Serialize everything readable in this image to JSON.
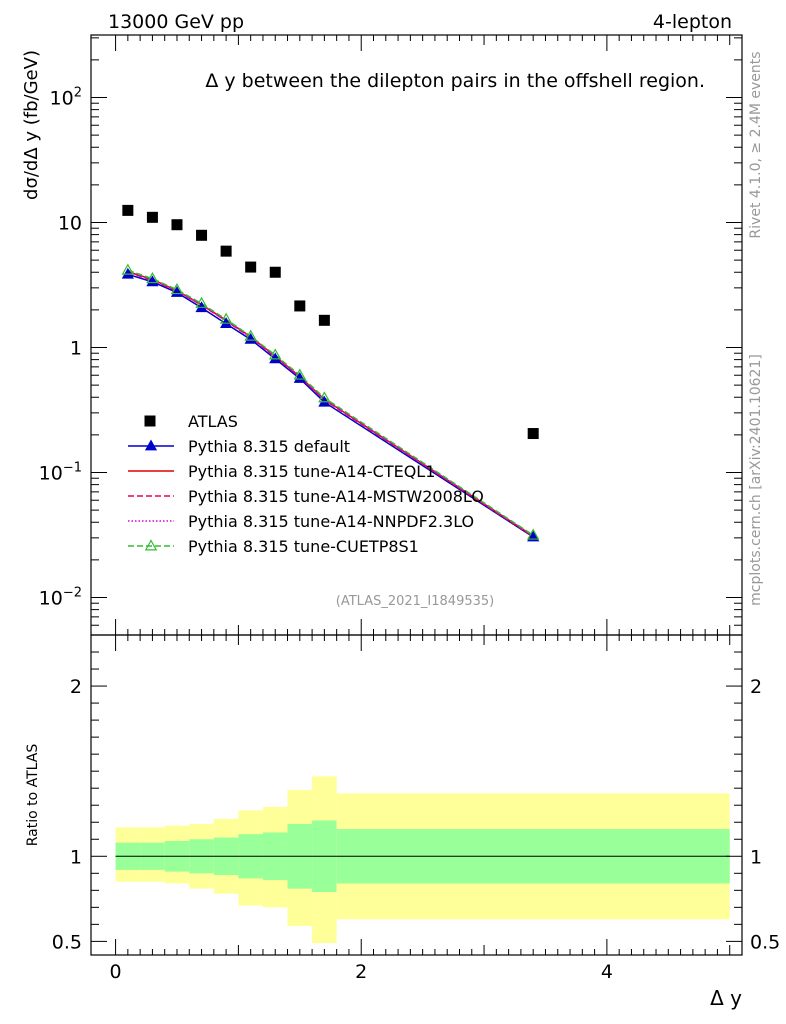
{
  "header": {
    "left_label": "13000 GeV pp",
    "right_label": "4-lepton"
  },
  "side_labels": {
    "rivet": "Rivet 4.1.0, ≥ 2.4M events",
    "mcplots": "mcplots.cern.ch [arXiv:2401.10621]"
  },
  "chart_data": [
    {
      "type": "scatter",
      "panel": "main",
      "title": "Δ y between the dilepton pairs in the offshell region.",
      "watermark": "(ATLAS_2021_I1849535)",
      "xlabel": "Δ y",
      "ylabel": "dσ/dΔ y (fb/GeV)",
      "xlim": [
        -0.2,
        5.1
      ],
      "ylim_log10": [
        -2.3,
        2.5
      ],
      "yscale": "log",
      "y_ticks": [
        {
          "value": 0.01,
          "base": "10",
          "exp": "−2"
        },
        {
          "value": 0.1,
          "base": "10",
          "exp": "−1"
        },
        {
          "value": 1,
          "label": "1"
        },
        {
          "value": 10,
          "label": "10"
        },
        {
          "value": 100,
          "base": "10",
          "exp": "2"
        }
      ],
      "legend_position": "center-left",
      "atlas": {
        "name": "ATLAS",
        "color": "#000000",
        "x": [
          0.1,
          0.3,
          0.5,
          0.7,
          0.9,
          1.1,
          1.3,
          1.5,
          1.7,
          3.4
        ],
        "y": [
          12.5,
          11.0,
          9.6,
          7.9,
          5.9,
          4.4,
          4.0,
          2.15,
          1.65,
          0.205
        ]
      },
      "series": [
        {
          "name": "Pythia 8.315 default",
          "color": "#0000cc",
          "style": "solid",
          "marker": "triangle-filled",
          "x": [
            0.1,
            0.3,
            0.5,
            0.7,
            0.9,
            1.1,
            1.3,
            1.5,
            1.7,
            3.4
          ],
          "y": [
            3.85,
            3.35,
            2.75,
            2.08,
            1.55,
            1.16,
            0.81,
            0.565,
            0.365,
            0.0305
          ]
        },
        {
          "name": "Pythia 8.315 tune-A14-CTEQL1",
          "color": "#dd0000",
          "style": "solid",
          "marker": "none",
          "x": [
            0.1,
            0.3,
            0.5,
            0.7,
            0.9,
            1.1,
            1.3,
            1.5,
            1.7,
            3.4
          ],
          "y": [
            4.05,
            3.5,
            2.85,
            2.2,
            1.65,
            1.22,
            0.85,
            0.585,
            0.385,
            0.031
          ]
        },
        {
          "name": "Pythia 8.315 tune-A14-MSTW2008LO",
          "color": "#ee0055",
          "style": "dashed",
          "marker": "none",
          "x": [
            0.1,
            0.3,
            0.5,
            0.7,
            0.9,
            1.1,
            1.3,
            1.5,
            1.7,
            3.4
          ],
          "y": [
            4.0,
            3.45,
            2.83,
            2.18,
            1.63,
            1.2,
            0.84,
            0.58,
            0.38,
            0.0308
          ]
        },
        {
          "name": "Pythia 8.315 tune-A14-NNPDF2.3LO",
          "color": "#dd00dd",
          "style": "dotted",
          "marker": "none",
          "x": [
            0.1,
            0.3,
            0.5,
            0.7,
            0.9,
            1.1,
            1.3,
            1.5,
            1.7,
            3.4
          ],
          "y": [
            4.02,
            3.48,
            2.84,
            2.19,
            1.64,
            1.21,
            0.845,
            0.582,
            0.383,
            0.0312
          ]
        },
        {
          "name": "Pythia 8.315 tune-CUETP8S1",
          "color": "#33bb33",
          "style": "dashed",
          "marker": "triangle-open",
          "x": [
            0.1,
            0.3,
            0.5,
            0.7,
            0.9,
            1.1,
            1.3,
            1.5,
            1.7,
            3.4
          ],
          "y": [
            4.15,
            3.55,
            2.9,
            2.25,
            1.68,
            1.23,
            0.87,
            0.6,
            0.395,
            0.0315
          ]
        }
      ]
    },
    {
      "type": "area",
      "panel": "ratio",
      "ylabel": "Ratio to ATLAS",
      "xlabel": "Δ y",
      "xlim": [
        -0.2,
        5.1
      ],
      "ylim": [
        0.42,
        2.3
      ],
      "x_ticks": [
        {
          "value": 0,
          "label": "0"
        },
        {
          "value": 2,
          "label": "2"
        },
        {
          "value": 4,
          "label": "4"
        }
      ],
      "y_ticks": [
        {
          "value": 0.5,
          "label": "0.5"
        },
        {
          "value": 1,
          "label": "1"
        },
        {
          "value": 2,
          "label": "2"
        }
      ],
      "reference_line": 1,
      "bands": [
        {
          "x0": 0.0,
          "x1": 0.2,
          "inner": [
            0.92,
            1.08
          ],
          "outer": [
            0.85,
            1.17
          ]
        },
        {
          "x0": 0.2,
          "x1": 0.4,
          "inner": [
            0.92,
            1.08
          ],
          "outer": [
            0.85,
            1.17
          ]
        },
        {
          "x0": 0.4,
          "x1": 0.6,
          "inner": [
            0.91,
            1.09
          ],
          "outer": [
            0.84,
            1.18
          ]
        },
        {
          "x0": 0.6,
          "x1": 0.8,
          "inner": [
            0.9,
            1.1
          ],
          "outer": [
            0.81,
            1.19
          ]
        },
        {
          "x0": 0.8,
          "x1": 1.0,
          "inner": [
            0.89,
            1.11
          ],
          "outer": [
            0.78,
            1.22
          ]
        },
        {
          "x0": 1.0,
          "x1": 1.2,
          "inner": [
            0.87,
            1.13
          ],
          "outer": [
            0.71,
            1.27
          ]
        },
        {
          "x0": 1.2,
          "x1": 1.4,
          "inner": [
            0.86,
            1.14
          ],
          "outer": [
            0.7,
            1.29
          ]
        },
        {
          "x0": 1.4,
          "x1": 1.6,
          "inner": [
            0.81,
            1.19
          ],
          "outer": [
            0.59,
            1.39
          ]
        },
        {
          "x0": 1.6,
          "x1": 1.8,
          "inner": [
            0.79,
            1.21
          ],
          "outer": [
            0.49,
            1.47
          ]
        },
        {
          "x0": 1.8,
          "x1": 5.0,
          "inner": [
            0.84,
            1.16
          ],
          "outer": [
            0.63,
            1.37
          ]
        }
      ],
      "inner_color": "#99ff99",
      "outer_color": "#ffff99"
    }
  ]
}
